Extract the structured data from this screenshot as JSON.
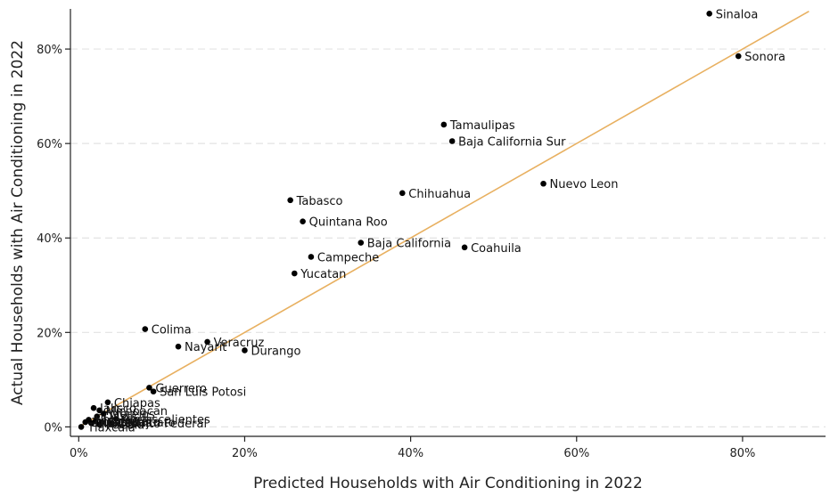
{
  "chart_data": {
    "type": "scatter",
    "title": "",
    "xlabel": "Predicted Households with Air Conditioning in 2022",
    "ylabel": "Actual Households with Air Conditioning in 2022",
    "xlim": [
      -0.01,
      0.9
    ],
    "ylim": [
      -0.02,
      0.885
    ],
    "x_ticks": [
      0.0,
      0.2,
      0.4,
      0.6,
      0.8
    ],
    "y_ticks": [
      0.0,
      0.2,
      0.4,
      0.6,
      0.8
    ],
    "x_tick_labels": [
      "0%",
      "20%",
      "40%",
      "60%",
      "80%"
    ],
    "y_tick_labels": [
      "0%",
      "20%",
      "40%",
      "60%",
      "80%"
    ],
    "grid": "horizontal dashed",
    "fit_line": {
      "x": [
        0.0,
        0.88
      ],
      "y": [
        0.0,
        0.88
      ],
      "color": "#e8b060"
    },
    "point_color": "#000000",
    "points": [
      {
        "label": "Sinaloa",
        "x": 0.76,
        "y": 0.875
      },
      {
        "label": "Sonora",
        "x": 0.795,
        "y": 0.785
      },
      {
        "label": "Tamaulipas",
        "x": 0.44,
        "y": 0.64
      },
      {
        "label": "Baja California Sur",
        "x": 0.45,
        "y": 0.605
      },
      {
        "label": "Nuevo Leon",
        "x": 0.56,
        "y": 0.515
      },
      {
        "label": "Chihuahua",
        "x": 0.39,
        "y": 0.495
      },
      {
        "label": "Tabasco",
        "x": 0.255,
        "y": 0.48
      },
      {
        "label": "Quintana Roo",
        "x": 0.27,
        "y": 0.435
      },
      {
        "label": "Baja California",
        "x": 0.34,
        "y": 0.39
      },
      {
        "label": "Coahuila",
        "x": 0.465,
        "y": 0.38
      },
      {
        "label": "Campeche",
        "x": 0.28,
        "y": 0.36
      },
      {
        "label": "Yucatan",
        "x": 0.26,
        "y": 0.325
      },
      {
        "label": "Colima",
        "x": 0.08,
        "y": 0.207
      },
      {
        "label": "Veracruz",
        "x": 0.155,
        "y": 0.18
      },
      {
        "label": "Nayarit",
        "x": 0.12,
        "y": 0.17
      },
      {
        "label": "Durango",
        "x": 0.2,
        "y": 0.162
      },
      {
        "label": "Guerrero",
        "x": 0.085,
        "y": 0.083
      },
      {
        "label": "San Luis Potosi",
        "x": 0.09,
        "y": 0.075
      },
      {
        "label": "Chiapas",
        "x": 0.035,
        "y": 0.052
      },
      {
        "label": "Michoacan",
        "x": 0.025,
        "y": 0.035
      },
      {
        "label": "Morelos",
        "x": 0.03,
        "y": 0.028
      },
      {
        "label": "Jalisco",
        "x": 0.018,
        "y": 0.04
      },
      {
        "label": "Oaxaca",
        "x": 0.022,
        "y": 0.022
      },
      {
        "label": "Aguascalientes",
        "x": 0.045,
        "y": 0.017
      },
      {
        "label": "Guanajuato",
        "x": 0.028,
        "y": 0.01
      },
      {
        "label": "Distrito Federal",
        "x": 0.04,
        "y": 0.008
      },
      {
        "label": "Hidalgo",
        "x": 0.012,
        "y": 0.015
      },
      {
        "label": "Queretaro",
        "x": 0.02,
        "y": 0.012
      },
      {
        "label": "Puebla",
        "x": 0.025,
        "y": 0.005
      },
      {
        "label": "Mexico",
        "x": 0.015,
        "y": 0.008
      },
      {
        "label": "Zacatecas",
        "x": 0.008,
        "y": 0.01
      },
      {
        "label": "Tlaxcala",
        "x": 0.003,
        "y": 0.0
      }
    ]
  }
}
